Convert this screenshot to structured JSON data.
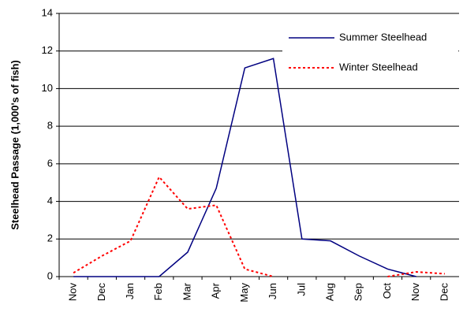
{
  "chart_data": {
    "type": "line",
    "y_label": "Steelhead Passage (1,000's of fish)",
    "categories": [
      "Nov",
      "Dec",
      "Jan",
      "Feb",
      "Mar",
      "Apr",
      "May",
      "Jun",
      "Jul",
      "Aug",
      "Sep",
      "Oct",
      "Nov",
      "Dec"
    ],
    "series": [
      {
        "name": "Summer Steelhead",
        "color": "#000080",
        "line_style": "solid",
        "values": [
          0,
          0,
          0,
          0,
          1.3,
          4.7,
          11.1,
          11.6,
          2.0,
          1.9,
          1.1,
          0.4,
          0,
          null
        ]
      },
      {
        "name": "Winter Steelhead",
        "color": "#ff0000",
        "line_style": "dashed",
        "values": [
          0.2,
          1.1,
          1.9,
          5.3,
          3.6,
          3.8,
          0.4,
          0,
          null,
          null,
          null,
          0,
          0.25,
          0.15
        ]
      }
    ],
    "ylim": [
      0,
      14
    ],
    "yticks": [
      0,
      2,
      4,
      6,
      8,
      10,
      12,
      14
    ],
    "grid": true,
    "legend": "upper right"
  }
}
